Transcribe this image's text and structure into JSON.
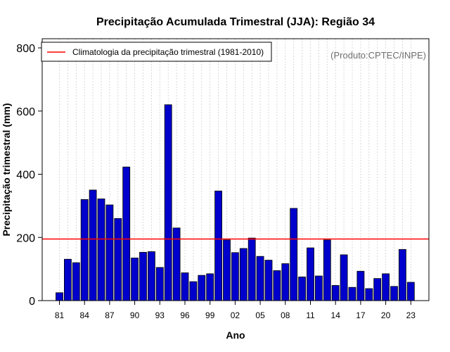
{
  "chart_data": {
    "type": "bar",
    "title": "Precipitação Acumulada Trimestral (JJA): Região 34",
    "xlabel": "Ano",
    "ylabel": "Precipitação trimestral (mm)",
    "ylim": [
      0,
      800
    ],
    "yticks": [
      0,
      200,
      400,
      600,
      800
    ],
    "grid": true,
    "x": [
      1981,
      1982,
      1983,
      1984,
      1985,
      1986,
      1987,
      1988,
      1989,
      1990,
      1991,
      1992,
      1993,
      1994,
      1995,
      1996,
      1997,
      1998,
      1999,
      2000,
      2001,
      2002,
      2003,
      2004,
      2005,
      2006,
      2007,
      2008,
      2009,
      2010,
      2011,
      2012,
      2013,
      2014,
      2015,
      2016,
      2017,
      2018,
      2019,
      2020,
      2021,
      2022,
      2023
    ],
    "values": [
      25,
      131,
      120,
      320,
      350,
      322,
      303,
      260,
      423,
      135,
      153,
      155,
      105,
      620,
      230,
      88,
      60,
      80,
      85,
      347,
      192,
      152,
      165,
      198,
      140,
      128,
      95,
      117,
      292,
      75,
      167,
      78,
      192,
      48,
      145,
      42,
      93,
      38,
      70,
      85,
      45,
      162,
      58
    ],
    "xtick_labels": [
      "81",
      "84",
      "87",
      "90",
      "93",
      "96",
      "99",
      "02",
      "05",
      "08",
      "11",
      "14",
      "17",
      "20",
      "23"
    ],
    "xtick_years": [
      1981,
      1984,
      1987,
      1990,
      1993,
      1996,
      1999,
      2002,
      2005,
      2008,
      2011,
      2014,
      2017,
      2020,
      2023
    ],
    "climatology": 195,
    "bar_color": "#0000CC",
    "line_color": "#FF0000",
    "legend": {
      "label": "Climatologia da precipitação trimestral (1981-2010)",
      "position": "top-left"
    },
    "credit": "(Produto:CPTEC/INPE)"
  }
}
